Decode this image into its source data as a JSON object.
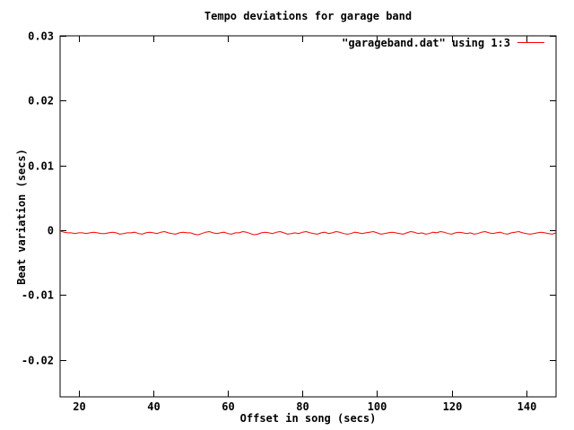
{
  "title": "Tempo deviations for garage band",
  "colors": {
    "background": "#ffffff",
    "axis": "#000000",
    "text": "#000000",
    "line": "#ff0000"
  },
  "legend": {
    "label": "\"garageband.dat\" using 1:3",
    "position": "top-right"
  },
  "chart_data": {
    "type": "line",
    "title": "Tempo deviations for garage band",
    "xlabel": "Offset in song (secs)",
    "ylabel": "Beat variation (secs)",
    "xlim": [
      15,
      148
    ],
    "ylim": [
      -0.0257,
      0.03
    ],
    "grid": false,
    "xticks": {
      "values": [
        20,
        40,
        60,
        80,
        100,
        120,
        140
      ],
      "labels": [
        "20",
        "40",
        "60",
        "80",
        "100",
        "120",
        "140"
      ]
    },
    "yticks": {
      "values": [
        -0.02,
        -0.01,
        0,
        0.01,
        0.02,
        0.03
      ],
      "labels": [
        "-0.02",
        "-0.01",
        "0",
        "0.01",
        "0.02",
        "0.03"
      ]
    },
    "series": [
      {
        "name": "\"garageband.dat\" using 1:3",
        "color": "#ff0000",
        "x_start": 15,
        "x_step": 1,
        "values": [
          -0.0001,
          -0.0003,
          -0.0004,
          -0.0004,
          -0.0005,
          -0.0004,
          -0.0004,
          -0.0005,
          -0.0004,
          -0.0003,
          -0.0004,
          -0.0005,
          -0.0005,
          -0.0004,
          -0.0003,
          -0.0004,
          -0.0006,
          -0.0005,
          -0.0004,
          -0.0004,
          -0.0003,
          -0.0005,
          -0.0006,
          -0.0004,
          -0.0003,
          -0.0004,
          -0.0005,
          -0.0003,
          -0.0002,
          -0.0004,
          -0.0005,
          -0.0006,
          -0.0004,
          -0.0003,
          -0.0004,
          -0.0004,
          -0.0006,
          -0.0007,
          -0.0005,
          -0.0003,
          -0.0002,
          -0.0004,
          -0.0005,
          -0.0004,
          -0.0003,
          -0.0005,
          -0.0006,
          -0.0004,
          -0.0004,
          -0.0002,
          -0.0003,
          -0.0005,
          -0.0007,
          -0.0006,
          -0.0004,
          -0.0003,
          -0.0004,
          -0.0005,
          -0.0003,
          -0.0002,
          -0.0004,
          -0.0006,
          -0.0005,
          -0.0004,
          -0.0005,
          -0.0003,
          -0.0002,
          -0.0004,
          -0.0005,
          -0.0006,
          -0.0004,
          -0.0003,
          -0.0005,
          -0.0004,
          -0.0002,
          -0.0003,
          -0.0005,
          -0.0006,
          -0.0005,
          -0.0003,
          -0.0004,
          -0.0005,
          -0.0004,
          -0.0003,
          -0.0002,
          -0.0004,
          -0.0006,
          -0.0005,
          -0.0004,
          -0.0003,
          -0.0004,
          -0.0005,
          -0.0006,
          -0.0004,
          -0.0002,
          -0.0003,
          -0.0005,
          -0.0004,
          -0.0006,
          -0.0005,
          -0.0003,
          -0.0004,
          -0.0002,
          -0.0003,
          -0.0005,
          -0.0006,
          -0.0004,
          -0.0003,
          -0.0004,
          -0.0005,
          -0.0004,
          -0.0006,
          -0.0005,
          -0.0003,
          -0.0002,
          -0.0004,
          -0.0005,
          -0.0004,
          -0.0003,
          -0.0005,
          -0.0006,
          -0.0004,
          -0.0003,
          -0.0002,
          -0.0004,
          -0.0005,
          -0.0006,
          -0.0005,
          -0.0004,
          -0.0003,
          -0.0004,
          -0.0005,
          -0.0006,
          -0.0004
        ]
      }
    ]
  }
}
